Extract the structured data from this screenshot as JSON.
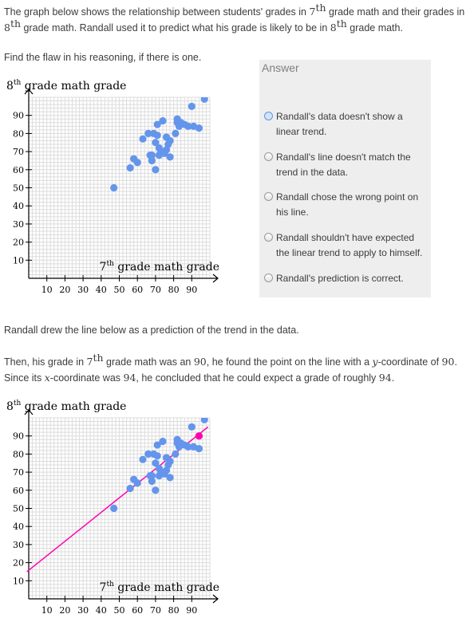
{
  "intro": {
    "a": "The graph below shows the relationship between students' grades in ",
    "b": " grade math and their grades in",
    "c": " grade math. Randall used it to predict what his grade is likely to be in ",
    "d": " grade math."
  },
  "ordinal": {
    "seven": "7",
    "eight": "8",
    "th": "th"
  },
  "prompt": "Find the flaw in his reasoning, if there is one.",
  "answer": {
    "title": "Answer",
    "choices": [
      {
        "line1": "Randall's data doesn't show a",
        "line2": "linear trend.",
        "selected": true
      },
      {
        "line1": "Randall's line doesn't match the",
        "line2": "trend in the data.",
        "selected": false
      },
      {
        "line1": "Randall chose the wrong point on",
        "line2": "his line.",
        "selected": false
      },
      {
        "line1": "Randall shouldn't have expected",
        "line2": "the linear trend to apply to himself.",
        "selected": false
      },
      {
        "line1": "Randall's prediction is correct.",
        "line2": "",
        "selected": false
      }
    ]
  },
  "line_intro": "Randall drew the line below as a prediction of the trend in the data.",
  "reasoning": {
    "a": "Then, his grade in ",
    "b": " grade math was an ",
    "c": ", he found the point on the line with a ",
    "d": "-coordinate of ",
    "e": ".",
    "f": "Since its ",
    "g": "-coordinate was ",
    "h": ", he concluded that he could expect a grade of roughly ",
    "i": ".",
    "num90": "90",
    "num94": "94",
    "yvar": "y",
    "xvar": "x"
  },
  "colors": {
    "points": "#6495ed",
    "line": "#ff00af",
    "grid": "#dcdcdc",
    "axis": "#000000"
  },
  "chart_data": [
    {
      "type": "scatter",
      "ylabel_main": "8",
      "ylabel_sup": "th",
      "ylabel_rest": " grade math grade",
      "xlabel_main": "7",
      "xlabel_sup": "th",
      "xlabel_rest": " grade math grade",
      "xlim": [
        0,
        100
      ],
      "ylim": [
        0,
        100
      ],
      "xticks": [
        10,
        20,
        30,
        40,
        50,
        60,
        70,
        80,
        90
      ],
      "yticks": [
        10,
        20,
        30,
        40,
        50,
        60,
        70,
        80,
        90
      ],
      "grid": true,
      "points": [
        [
          47,
          50
        ],
        [
          56,
          61
        ],
        [
          58,
          66
        ],
        [
          60,
          64
        ],
        [
          63,
          77
        ],
        [
          66,
          80
        ],
        [
          67,
          68
        ],
        [
          68,
          65
        ],
        [
          68,
          68
        ],
        [
          69,
          80
        ],
        [
          70,
          75
        ],
        [
          70,
          60
        ],
        [
          71,
          85
        ],
        [
          71,
          79
        ],
        [
          72,
          72
        ],
        [
          72,
          68
        ],
        [
          73,
          70
        ],
        [
          74,
          87
        ],
        [
          75,
          69
        ],
        [
          76,
          78
        ],
        [
          76,
          71
        ],
        [
          77,
          74
        ],
        [
          78,
          67
        ],
        [
          78,
          76
        ],
        [
          81,
          80
        ],
        [
          82,
          88
        ],
        [
          82,
          86
        ],
        [
          83,
          84
        ],
        [
          84,
          86
        ],
        [
          86,
          85
        ],
        [
          88,
          84
        ],
        [
          90,
          95
        ],
        [
          91,
          84
        ],
        [
          94,
          83
        ],
        [
          97,
          99
        ]
      ]
    },
    {
      "type": "scatter",
      "ylabel_main": "8",
      "ylabel_sup": "th",
      "ylabel_rest": " grade math grade",
      "xlabel_main": "7",
      "xlabel_sup": "th",
      "xlabel_rest": " grade math grade",
      "xlim": [
        0,
        100
      ],
      "ylim": [
        0,
        100
      ],
      "xticks": [
        10,
        20,
        30,
        40,
        50,
        60,
        70,
        80,
        90
      ],
      "yticks": [
        10,
        20,
        30,
        40,
        50,
        60,
        70,
        80,
        90
      ],
      "grid": true,
      "points": [
        [
          47,
          50
        ],
        [
          56,
          61
        ],
        [
          58,
          66
        ],
        [
          60,
          64
        ],
        [
          63,
          77
        ],
        [
          66,
          80
        ],
        [
          67,
          68
        ],
        [
          68,
          65
        ],
        [
          68,
          68
        ],
        [
          69,
          80
        ],
        [
          70,
          75
        ],
        [
          70,
          60
        ],
        [
          71,
          85
        ],
        [
          71,
          79
        ],
        [
          72,
          72
        ],
        [
          72,
          68
        ],
        [
          73,
          70
        ],
        [
          74,
          87
        ],
        [
          75,
          69
        ],
        [
          76,
          78
        ],
        [
          76,
          71
        ],
        [
          77,
          74
        ],
        [
          78,
          67
        ],
        [
          78,
          76
        ],
        [
          81,
          80
        ],
        [
          82,
          88
        ],
        [
          82,
          86
        ],
        [
          83,
          84
        ],
        [
          84,
          86
        ],
        [
          86,
          85
        ],
        [
          88,
          84
        ],
        [
          90,
          95
        ],
        [
          91,
          84
        ],
        [
          94,
          83
        ],
        [
          97,
          99
        ]
      ],
      "trend_line": [
        [
          -1,
          15
        ],
        [
          99,
          95
        ]
      ],
      "highlight": [
        94,
        90
      ]
    }
  ]
}
